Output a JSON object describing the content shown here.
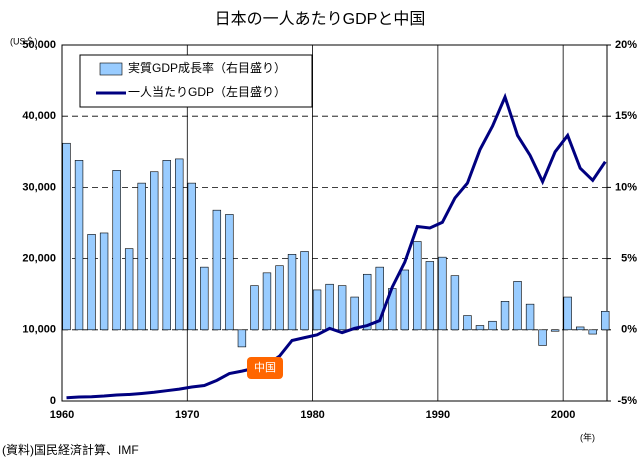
{
  "chart_data": {
    "type": "combo",
    "title": "日本の一人あたりGDPと中国",
    "y_unit": "(US＄)",
    "x_unit": "(年)",
    "source": "(資料)国民経済計算、IMF",
    "annotation": "中国",
    "x": [
      1960,
      1961,
      1962,
      1963,
      1964,
      1965,
      1966,
      1967,
      1968,
      1969,
      1970,
      1971,
      1972,
      1973,
      1974,
      1975,
      1976,
      1977,
      1978,
      1979,
      1980,
      1981,
      1982,
      1983,
      1984,
      1985,
      1986,
      1987,
      1988,
      1989,
      1990,
      1991,
      1992,
      1993,
      1994,
      1995,
      1996,
      1997,
      1998,
      1999,
      2000,
      2001,
      2002,
      2003
    ],
    "series": [
      {
        "name": "実質GDP成長率（右目盛り）",
        "type": "bar",
        "axis": "y2",
        "color": "#99ccff",
        "values": [
          13.1,
          11.9,
          6.7,
          6.8,
          11.2,
          5.7,
          10.3,
          11.1,
          11.9,
          12.0,
          10.3,
          4.4,
          8.4,
          8.1,
          -1.2,
          3.1,
          4.0,
          4.5,
          5.3,
          5.5,
          2.8,
          3.2,
          3.1,
          2.3,
          3.9,
          4.4,
          2.9,
          4.2,
          6.2,
          4.8,
          5.1,
          3.8,
          1.0,
          0.3,
          0.6,
          2.0,
          3.4,
          1.8,
          -1.1,
          -0.1,
          2.3,
          0.2,
          -0.3,
          1.3
        ]
      },
      {
        "name": "一人当たりGDP（左目盛り）",
        "type": "line",
        "color": "#000080",
        "values": [
          460,
          560,
          600,
          700,
          850,
          920,
          1060,
          1230,
          1450,
          1670,
          1970,
          2180,
          2900,
          3850,
          4200,
          4600,
          5100,
          6300,
          8500,
          8900,
          9300,
          10200,
          9600,
          10200,
          10600,
          11300,
          16000,
          19500,
          24500,
          24300,
          25100,
          28500,
          30600,
          35300,
          38600,
          42700,
          37300,
          34500,
          30800,
          35000,
          37300,
          32700,
          31000,
          33600
        ]
      }
    ],
    "xlim": [
      1960,
      2003.5
    ],
    "xticks": [
      1960,
      1970,
      1980,
      1990,
      2000
    ],
    "ylim": [
      0,
      50000
    ],
    "yticks": [
      0,
      {
        "value": 10000,
        "label": "10,000"
      },
      {
        "value": 20000,
        "label": "20,000"
      },
      {
        "value": 30000,
        "label": "30,000"
      },
      {
        "value": 40000,
        "label": "40,000"
      },
      {
        "value": 50000,
        "label": "50,000"
      }
    ],
    "y2lim": [
      -5,
      20
    ],
    "y2ticks": [
      {
        "value": -5,
        "label": "-5%"
      },
      {
        "value": 0,
        "label": "0%"
      },
      {
        "value": 5,
        "label": "5%"
      },
      {
        "value": 10,
        "label": "10%"
      },
      {
        "value": 15,
        "label": "15%"
      },
      {
        "value": 20,
        "label": "20%"
      }
    ],
    "grid": true
  }
}
